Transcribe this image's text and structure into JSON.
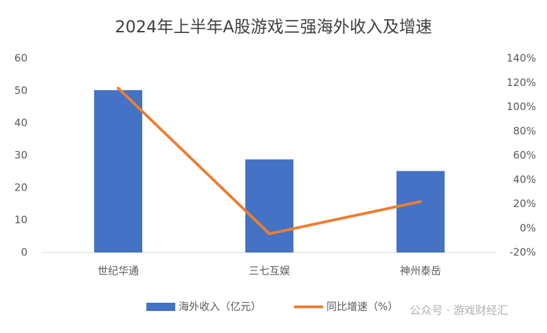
{
  "chart_data": {
    "type": "bar",
    "title": "2024年上半年A股游戏三强海外收入及增速",
    "categories": [
      "世纪华通",
      "三七互娱",
      "神州泰岳"
    ],
    "series": [
      {
        "name": "海外收入（亿元）",
        "type": "bar",
        "color": "#4472c4",
        "values": [
          50.2,
          28.8,
          25.2
        ]
      },
      {
        "name": "同比增速（%）",
        "type": "line",
        "axis": "y2",
        "color": "#ed7d31",
        "values": [
          115.5,
          -4.5,
          22
        ]
      }
    ],
    "ylim": [
      0,
      60
    ],
    "yticks": [
      0,
      10,
      20,
      30,
      40,
      50,
      60
    ],
    "y2lim": [
      -20,
      140
    ],
    "y2ticks": [
      {
        "value": -20,
        "label": "-20%"
      },
      {
        "value": 0,
        "label": "0%"
      },
      {
        "value": 20,
        "label": "20%"
      },
      {
        "value": 40,
        "label": "40%"
      },
      {
        "value": 60,
        "label": "60%"
      },
      {
        "value": 80,
        "label": "80%"
      },
      {
        "value": 100,
        "label": "100%"
      },
      {
        "value": 120,
        "label": "120%"
      },
      {
        "value": 140,
        "label": "140%"
      }
    ],
    "grid": false,
    "legend": "bottom",
    "watermark": "公众号 · 游戏财经汇"
  }
}
